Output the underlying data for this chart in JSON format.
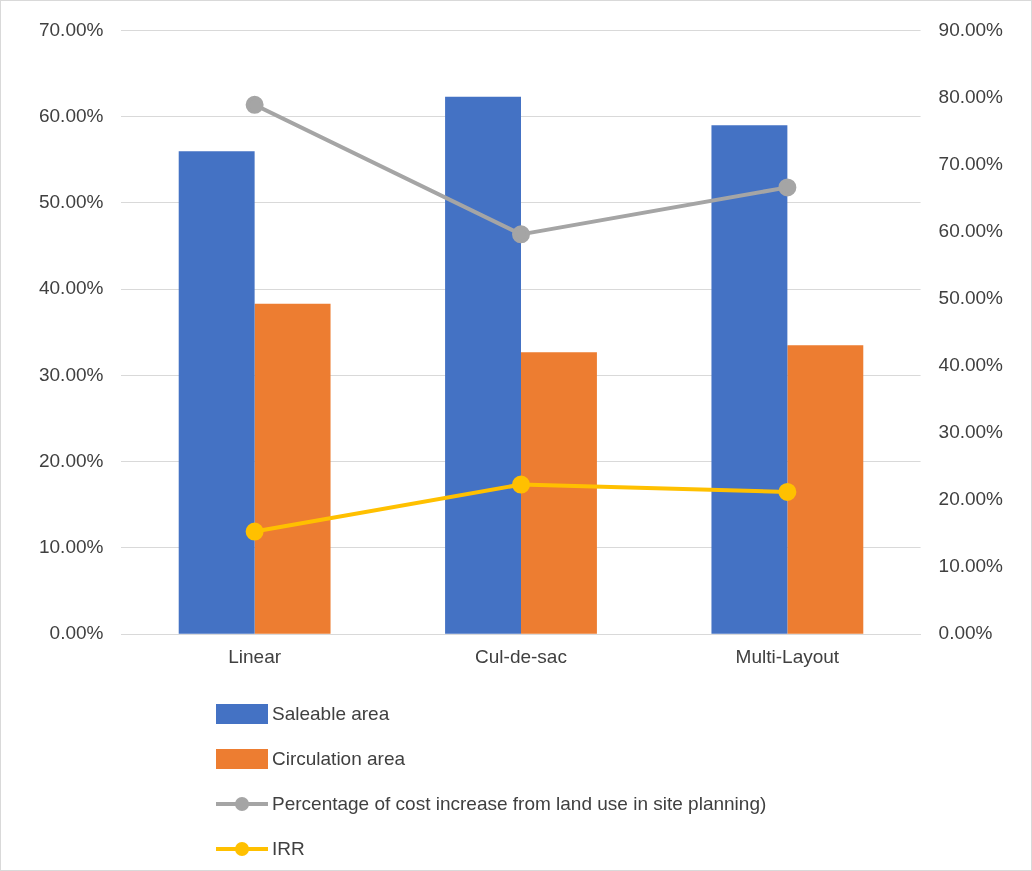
{
  "chart_data": {
    "type": "bar",
    "categories": [
      "Linear",
      "Cul-de-sac",
      "Multi-Layout"
    ],
    "series": [
      {
        "name": "Saleable area",
        "color": "#4472c4",
        "values": [
          56.0,
          62.3,
          59.0
        ]
      },
      {
        "name": "Circulation area",
        "color": "#ed7d31",
        "values": [
          38.3,
          32.7,
          33.5
        ]
      },
      {
        "name": "Percentage of cost increase from land use in site planning)",
        "type": "line",
        "axis": "y2",
        "color": "#a5a5a5",
        "values": [
          78.9,
          59.6,
          66.6
        ]
      },
      {
        "name": "IRR",
        "type": "line",
        "axis": "y2",
        "color": "#ffc000",
        "values": [
          15.3,
          22.3,
          21.2
        ]
      }
    ],
    "ylim": [
      0,
      70
    ],
    "yticks": [
      {
        "value": 0,
        "label": "0.00%"
      },
      {
        "value": 10,
        "label": "10.00%"
      },
      {
        "value": 20,
        "label": "20.00%"
      },
      {
        "value": 30,
        "label": "30.00%"
      },
      {
        "value": 40,
        "label": "40.00%"
      },
      {
        "value": 50,
        "label": "50.00%"
      },
      {
        "value": 60,
        "label": "60.00%"
      },
      {
        "value": 70,
        "label": "70.00%"
      }
    ],
    "y2lim": [
      0,
      90
    ],
    "y2ticks": [
      {
        "value": 0,
        "label": "0.00%"
      },
      {
        "value": 10,
        "label": "10.00%"
      },
      {
        "value": 20,
        "label": "20.00%"
      },
      {
        "value": 30,
        "label": "30.00%"
      },
      {
        "value": 40,
        "label": "40.00%"
      },
      {
        "value": 50,
        "label": "50.00%"
      },
      {
        "value": 60,
        "label": "60.00%"
      },
      {
        "value": 70,
        "label": "70.00%"
      },
      {
        "value": 80,
        "label": "80.00%"
      },
      {
        "value": 90,
        "label": "90.00%"
      }
    ],
    "grid": "y",
    "legend": "bottom",
    "marker": "circle",
    "line_style": "solid"
  }
}
